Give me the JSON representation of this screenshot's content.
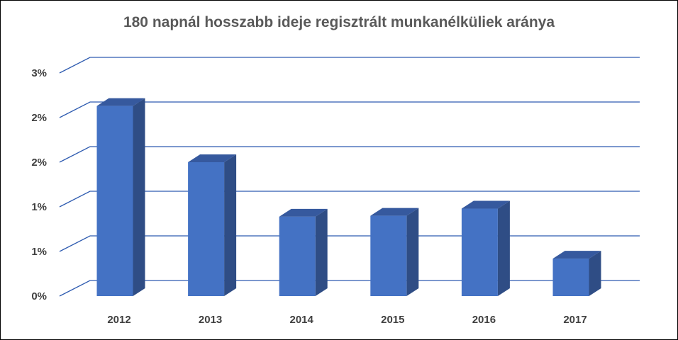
{
  "colors": {
    "bar_front": "#4472c4",
    "bar_side": "#2f4d85",
    "bar_top": "#36599e",
    "grid": "#2e5bb0",
    "text": "#404040",
    "title": "#595959"
  },
  "chart_data": {
    "type": "bar",
    "title": "180 napnál hosszabb ideje regisztrált munkanélküliek aránya",
    "xlabel": "",
    "ylabel": "",
    "categories": [
      "2012",
      "2013",
      "2014",
      "2015",
      "2016",
      "2017"
    ],
    "values": [
      2.13,
      1.5,
      0.89,
      0.9,
      0.98,
      0.42
    ],
    "ylim": [
      0,
      2.5
    ],
    "yticks": [
      0,
      0.5,
      1,
      1.5,
      2,
      2.5
    ],
    "ytick_labels": [
      "0%",
      "1%",
      "1%",
      "2%",
      "2%",
      "3%"
    ],
    "grid": true,
    "legend": "none",
    "bar_style": "3d"
  }
}
